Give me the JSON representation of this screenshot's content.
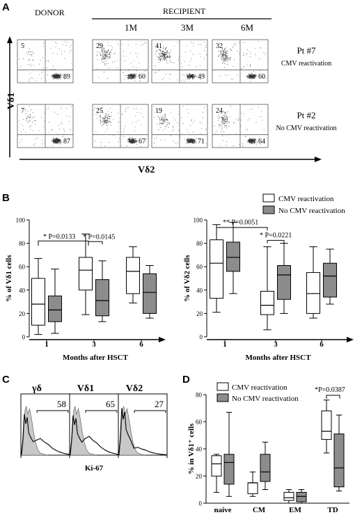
{
  "panels": {
    "A": "A",
    "B": "B",
    "C": "C",
    "D": "D"
  },
  "panel_a": {
    "donor_label": "DONOR",
    "recipient_label": "RECIPIENT",
    "timepoints": [
      "1M",
      "3M",
      "6M"
    ],
    "y_axis": "Vδ1",
    "x_axis": "Vδ2",
    "rows": [
      {
        "patient": "Pt #7",
        "status": "CMV reactivation",
        "upper": [
          "5",
          "29",
          "41",
          "32"
        ],
        "lower": [
          "89",
          "60",
          "49",
          "60"
        ]
      },
      {
        "patient": "Pt #2",
        "status": "No CMV reactivation",
        "upper": [
          "7",
          "25",
          "19",
          "24"
        ],
        "lower": [
          "87",
          "67",
          "71",
          "64"
        ]
      }
    ]
  },
  "legend": {
    "cmv": "CMV reactivation",
    "no_cmv": "No CMV reactivation",
    "cmv_color": "#ffffff",
    "no_cmv_color": "#8c8c8c"
  },
  "chart_data": [
    {
      "id": "B-left",
      "type": "box",
      "ylabel": "% of Vδ1 cells",
      "xlabel": "Months after HSCT",
      "categories": [
        "1",
        "3",
        "6"
      ],
      "ylim": [
        0,
        100
      ],
      "yticks": [
        0,
        20,
        40,
        60,
        80,
        100
      ],
      "series": [
        {
          "name": "CMV reactivation",
          "boxes": [
            [
              2,
              10,
              28,
              50,
              67
            ],
            [
              19,
              40,
              57,
              68,
              88
            ],
            [
              29,
              37,
              56,
              68,
              77
            ]
          ]
        },
        {
          "name": "No CMV reactivation",
          "boxes": [
            [
              3,
              13,
              23,
              35,
              58
            ],
            [
              13,
              18,
              31,
              49,
              65
            ],
            [
              16,
              20,
              38,
              54,
              61
            ]
          ]
        }
      ],
      "annotations": [
        {
          "text": "* P=0.0133"
        },
        {
          "text": "* P=0.0145"
        }
      ]
    },
    {
      "id": "B-right",
      "type": "box",
      "ylabel": "% of Vδ2 cells",
      "xlabel": "Months after HSCT",
      "categories": [
        "1",
        "3",
        "6"
      ],
      "ylim": [
        0,
        100
      ],
      "yticks": [
        0,
        20,
        40,
        60,
        80,
        100
      ],
      "series": [
        {
          "name": "CMV reactivation",
          "boxes": [
            [
              21,
              33,
              63,
              83,
              96
            ],
            [
              6,
              19,
              27,
              39,
              77
            ],
            [
              16,
              20,
              37,
              55,
              77
            ]
          ]
        },
        {
          "name": "No CMV reactivation",
          "boxes": [
            [
              37,
              56,
              68,
              81,
              98
            ],
            [
              20,
              32,
              53,
              61,
              80
            ],
            [
              28,
              34,
              52,
              63,
              75
            ]
          ]
        }
      ],
      "annotations": [
        {
          "text": "** P=0.0051"
        },
        {
          "text": "* P=0.0221"
        }
      ]
    },
    {
      "id": "C",
      "type": "histogram",
      "xlabel": "Ki-67",
      "panels": [
        {
          "label": "γδ",
          "value": "58"
        },
        {
          "label": "Vδ1",
          "value": "65"
        },
        {
          "label": "Vδ2",
          "value": "27"
        }
      ]
    },
    {
      "id": "D",
      "type": "box",
      "ylabel": "% in Vδ1⁺ cells",
      "categories": [
        "naive",
        "CM",
        "EM",
        "TD"
      ],
      "ylim": [
        0,
        80
      ],
      "yticks": [
        0,
        20,
        40,
        60,
        80
      ],
      "series": [
        {
          "name": "CMV reactivation",
          "boxes": [
            [
              8,
              20,
              29,
              35,
              36
            ],
            [
              5,
              7,
              15,
              15,
              23
            ],
            [
              0,
              2,
              4,
              8,
              10
            ],
            [
              37,
              47,
              53,
              68,
              76
            ]
          ]
        },
        {
          "name": "No CMV reactivation",
          "boxes": [
            [
              5,
              14,
              30,
              36,
              67
            ],
            [
              10,
              16,
              23,
              36,
              45
            ],
            [
              0,
              1,
              5,
              8,
              10
            ],
            [
              9,
              12,
              26,
              51,
              65
            ]
          ]
        }
      ],
      "annotations": [
        {
          "text": "*P=0.0387"
        }
      ]
    }
  ]
}
